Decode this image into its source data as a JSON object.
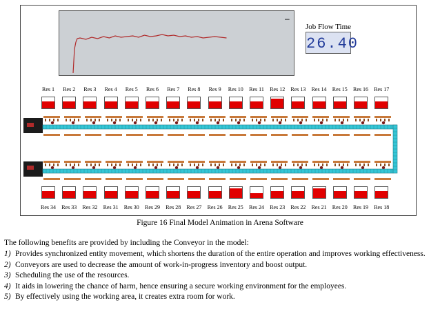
{
  "figure": {
    "job_flow": {
      "label": "Job Flow Time",
      "value": "26.40"
    },
    "plot": {
      "minus_label": "–",
      "line_color": "#b02a2a"
    },
    "resources_top": [
      {
        "label": "Res 1",
        "level": 0.6
      },
      {
        "label": "Res 2",
        "level": 0.6
      },
      {
        "label": "Res 3",
        "level": 0.6
      },
      {
        "label": "Res 4",
        "level": 0.6
      },
      {
        "label": "Res 5",
        "level": 0.6
      },
      {
        "label": "Res 6",
        "level": 0.6
      },
      {
        "label": "Res 7",
        "level": 0.6
      },
      {
        "label": "Res 8",
        "level": 0.6
      },
      {
        "label": "Res 9",
        "level": 0.6
      },
      {
        "label": "Res 10",
        "level": 0.6
      },
      {
        "label": "Res 11",
        "level": 0.6
      },
      {
        "label": "Res 12",
        "level": 0.85
      },
      {
        "label": "Res 13",
        "level": 0.6
      },
      {
        "label": "Res 14",
        "level": 0.6
      },
      {
        "label": "Res 15",
        "level": 0.6
      },
      {
        "label": "Res 16",
        "level": 0.6
      },
      {
        "label": "Res 17",
        "level": 0.6
      }
    ],
    "resources_bottom": [
      {
        "label": "Res 34",
        "level": 0.6
      },
      {
        "label": "Res 33",
        "level": 0.6
      },
      {
        "label": "Res 32",
        "level": 0.6
      },
      {
        "label": "Res 31",
        "level": 0.6
      },
      {
        "label": "Res 30",
        "level": 0.6
      },
      {
        "label": "Res 29",
        "level": 0.6
      },
      {
        "label": "Res 28",
        "level": 0.6
      },
      {
        "label": "Res 27",
        "level": 0.6
      },
      {
        "label": "Res 26",
        "level": 0.6
      },
      {
        "label": "Res 25",
        "level": 0.85
      },
      {
        "label": "Res 24",
        "level": 0.45
      },
      {
        "label": "Res 23",
        "level": 0.6
      },
      {
        "label": "Res 22",
        "level": 0.6
      },
      {
        "label": "Res 21",
        "level": 0.85
      },
      {
        "label": "Res 20",
        "level": 0.6
      },
      {
        "label": "Res 19",
        "level": 0.6
      },
      {
        "label": "Res 18",
        "level": 0.6
      }
    ],
    "colors": {
      "resource_fill": "#e10000",
      "conveyor": "#35c6d6",
      "station": "#c8793a",
      "panel": "#d8dee8"
    }
  },
  "caption": "Figure 16 Final Model Animation in Arena Software",
  "intro": "The following benefits are provided by including the Conveyor in the model:",
  "items": [
    {
      "num": "1)",
      "text": "Provides synchronized entity movement, which shortens the duration of the entire operation and improves working effectiveness."
    },
    {
      "num": "2)",
      "text": "Conveyors are used to decrease the amount of work-in-progress inventory and boost output."
    },
    {
      "num": "3)",
      "text": "Scheduling the use of the resources."
    },
    {
      "num": "4)",
      "text": "It aids in lowering the chance of harm, hence ensuring a secure working environment for the employees."
    },
    {
      "num": "5)",
      "text": "By effectively using the working area, it creates extra room for work."
    }
  ]
}
